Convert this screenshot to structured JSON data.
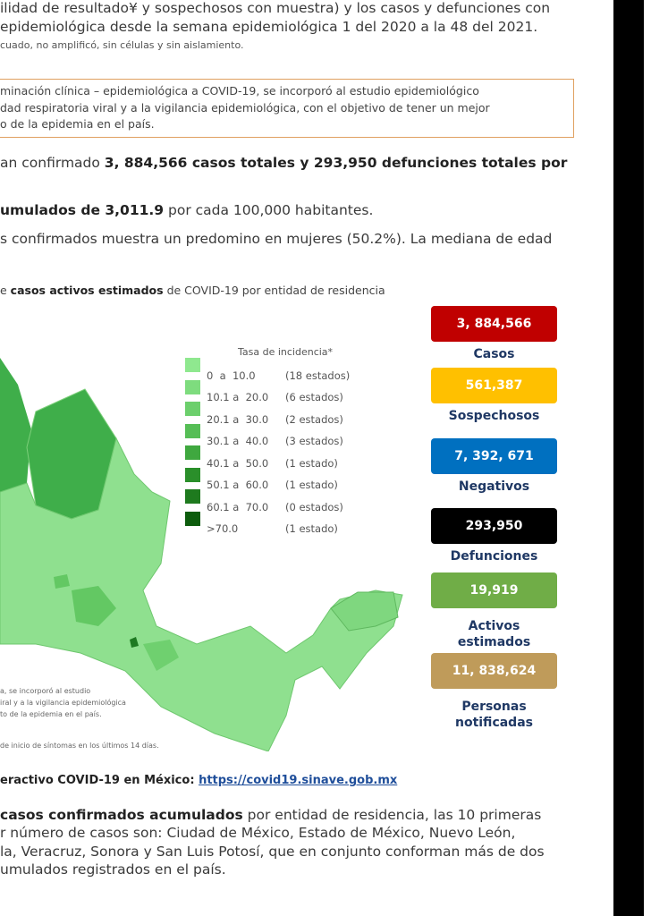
{
  "intro": {
    "lines": [
      "ilidad de resultado¥ y sospechosos con muestra) y los casos y defunciones con",
      "epidemiológica desde la semana epidemiológica 1 del 2020 a la 48 del 2021."
    ],
    "note": "cuado, no amplificó, sin células y sin aislamiento."
  },
  "boxed_note": {
    "lines": [
      "minación clínica – epidemiológica a COVID-19, se incorporó al estudio epidemiológico",
      "dad respiratoria viral y a la vigilancia epidemiológica, con el objetivo de tener un mejor",
      "o de la epidemia en el país."
    ]
  },
  "summary": {
    "p1_start": "an confirmado ",
    "p1_bold": "3, 884,566 casos totales y 293,950 defunciones totales por",
    "p2_bold": "umulados de 3,011.9",
    "p2_rest": " por cada 100,000 habitantes.",
    "p3": "s confirmados muestra un predomino en mujeres (50.2%). La mediana de edad"
  },
  "figure": {
    "caption_start": "e ",
    "caption_bold": "casos activos estimados",
    "caption_rest": " de COVID-19 por entidad de residencia",
    "legend_title": "Tasa de incidencia*",
    "legend": [
      {
        "range": "0  a  10.0",
        "count": "(18 estados)"
      },
      {
        "range": "10.1 a  20.0",
        "count": "(6 estados)"
      },
      {
        "range": "20.1 a  30.0",
        "count": "(2 estados)"
      },
      {
        "range": "30.1 a  40.0",
        "count": "(3 estados)"
      },
      {
        "range": "40.1 a  50.0",
        "count": "(1 estado)"
      },
      {
        "range": "50.1 a  60.0",
        "count": "(1 estado)"
      },
      {
        "range": "60.1 a  70.0",
        "count": "(0 estados)"
      },
      {
        "range": ">70.0",
        "count": "(1 estado)"
      }
    ],
    "map_note": [
      "a, se incorporó al estudio",
      "iral y a la vigilancia epidemiológica",
      "to de la epidemia en el país."
    ],
    "footnote": "de inicio de síntomas en los últimos 14 días.",
    "cards": [
      {
        "value": "3, 884,566",
        "label": [
          "Casos"
        ]
      },
      {
        "value": "561,387",
        "label": [
          "Sospechosos"
        ]
      },
      {
        "value": "7, 392, 671",
        "label": [
          "Negativos"
        ]
      },
      {
        "value": "293,950",
        "label": [
          "Defunciones"
        ]
      },
      {
        "value": "19,919",
        "label": [
          "Activos",
          "estimados"
        ]
      },
      {
        "value": "11, 838,624",
        "label": [
          "Personas",
          "notificadas"
        ]
      }
    ]
  },
  "link_line": {
    "text": "eractivo COVID-19 en México: ",
    "url": "https://covid19.sinave.gob.mx"
  },
  "closing": {
    "bold": "casos confirmados acumulados",
    "line1_rest": " por entidad de residencia, las 10 primeras",
    "lines": [
      "r número de casos son: Ciudad de México, Estado de México, Nuevo León,",
      "la, Veracruz, Sonora y San Luis Potosí, que en conjunto conforman más de dos",
      "umulados registrados en el país."
    ]
  }
}
